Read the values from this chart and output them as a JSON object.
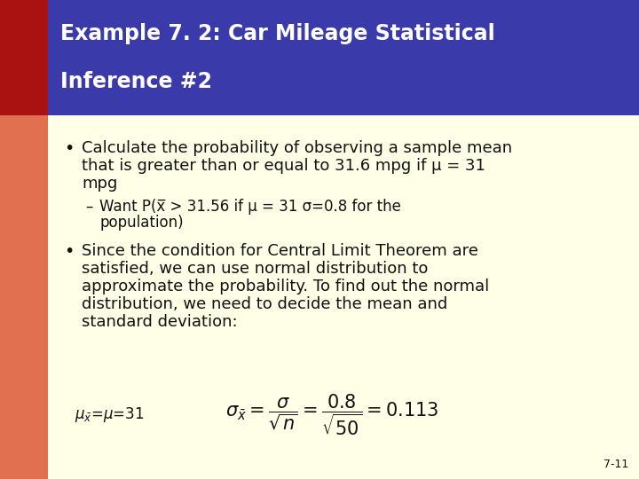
{
  "title_line1": "Example 7. 2: Car Mileage Statistical",
  "title_line2": "Inference #2",
  "title_bg": "#3a3aaa",
  "title_color": "#ffffff",
  "left_bar_color_top": "#aa1111",
  "left_bar_color_bottom": "#e07050",
  "body_bg": "#ffffe8",
  "body_text_color": "#111111",
  "slide_bg": "#ffffff",
  "bullet1_line1": "Calculate the probability of observing a sample mean",
  "bullet1_line2": "that is greater than or equal to 31.6 mpg if μ = 31",
  "bullet1_line3": "mpg",
  "sub_line1": "Want P(x̅ > 31.56 if μ = 31 σ=0.8 for the",
  "sub_line2": "population)",
  "bullet2_line1": "Since the condition for Central Limit Theorem are",
  "bullet2_line2": "satisfied, we can use normal distribution to",
  "bullet2_line3": "approximate the probability. To find out the normal",
  "bullet2_line4": "distribution, we need to decide the mean and",
  "bullet2_line5": "standard deviation:",
  "page_num": "7-11",
  "title_fontsize": 17,
  "body_fontsize": 13,
  "sub_fontsize": 12,
  "formula_fontsize": 12
}
